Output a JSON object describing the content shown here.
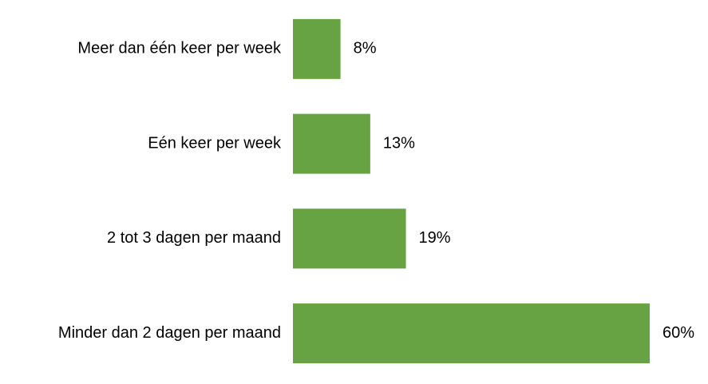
{
  "chart_data": {
    "type": "barh",
    "categories": [
      "Meer dan één keer per week",
      "Eén keer per week",
      "2 tot 3 dagen per maand",
      "Minder dan 2 dagen per maand"
    ],
    "values": [
      8,
      13,
      19,
      60
    ],
    "value_labels": [
      "8%",
      "13%",
      "19%",
      "60%"
    ],
    "color": "#67a342"
  }
}
